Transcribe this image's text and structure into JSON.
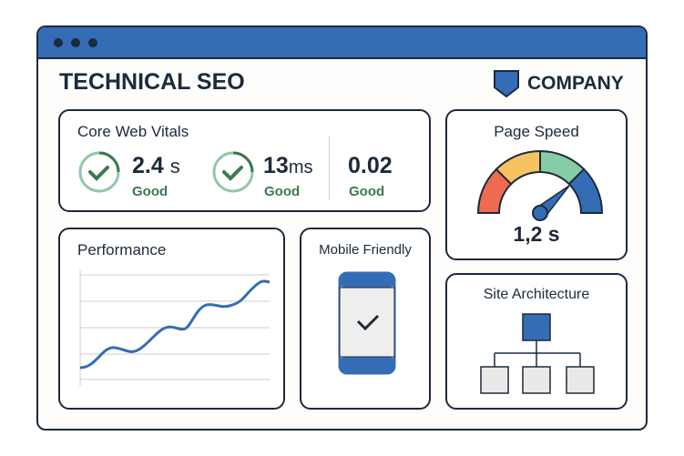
{
  "header": {
    "title": "TECHNICAL SEO",
    "brand": "COMPANY"
  },
  "core_web_vitals": {
    "title": "Core Web Vitals",
    "metrics": [
      {
        "value": "2.4",
        "unit": "s",
        "status": "Good",
        "icon": "check-circle-icon"
      },
      {
        "value": "13",
        "unit": "ms",
        "status": "Good",
        "icon": "check-circle-icon"
      },
      {
        "value": "0.02",
        "unit": "",
        "status": "Good"
      }
    ]
  },
  "page_speed": {
    "title": "Page Speed",
    "value": "1,2 s",
    "gauge_colors": [
      "#ef6a50",
      "#f7c262",
      "#86cca6",
      "#346db6"
    ]
  },
  "performance": {
    "title": "Performance"
  },
  "mobile": {
    "title": "Mobile Friendly",
    "icon": "phone-check-icon"
  },
  "site_architecture": {
    "title": "Site Architecture",
    "icon": "sitemap-icon"
  },
  "colors": {
    "accent": "#346db6",
    "good": "#3a7a4f",
    "ink": "#1c2a3a"
  }
}
